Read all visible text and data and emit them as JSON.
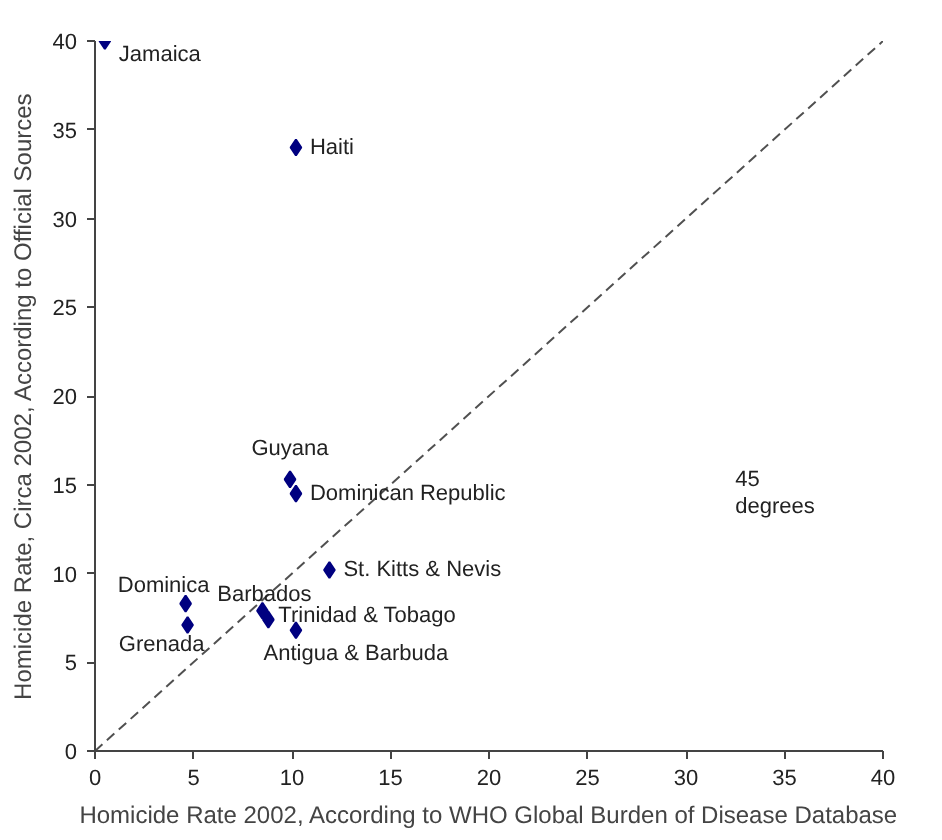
{
  "chart_data": {
    "type": "scatter",
    "xlabel": "Homicide Rate 2002, According to WHO Global Burden of Disease Database",
    "ylabel": "Homicide Rate, Circa 2002, According to Official Sources",
    "series": [
      {
        "color": "#000080",
        "marker": "diamond",
        "x": [
          0.5,
          10.2,
          9.9,
          10.2,
          11.9,
          4.6,
          4.7,
          8.5,
          8.8,
          10.2
        ],
        "values": [
          40,
          34,
          15.3,
          14.5,
          10.2,
          8.3,
          7.1,
          7.9,
          7.4,
          6.8
        ]
      },
      {
        "type": "line",
        "color": "#505050",
        "line_style": "dashed",
        "marker": "none",
        "x": [
          0,
          40
        ],
        "values": [
          0,
          40
        ]
      }
    ],
    "annotations": [
      {
        "text": "Jamaica",
        "x": 0.5,
        "y": 40
      },
      {
        "text": "Haiti",
        "x": 10.2,
        "y": 34
      },
      {
        "text": "Guyana",
        "x": 9.9,
        "y": 15.3
      },
      {
        "text": "Dominican Republic",
        "x": 10.2,
        "y": 14.5
      },
      {
        "text": "St. Kitts & Nevis",
        "x": 11.9,
        "y": 10.2
      },
      {
        "text": "Dominica",
        "x": 4.6,
        "y": 8.3
      },
      {
        "text": "Grenada",
        "x": 4.7,
        "y": 7.1
      },
      {
        "text": "Barbados",
        "x": 8.5,
        "y": 7.9
      },
      {
        "text": "Trinidad & Tobago",
        "x": 8.8,
        "y": 7.4
      },
      {
        "text": "Antigua & Barbuda",
        "x": 10.2,
        "y": 6.8
      },
      "45\ndegrees"
    ],
    "xlim": [
      0,
      40
    ],
    "ylim": [
      0,
      40
    ],
    "xticks": [
      0,
      5,
      10,
      15,
      20,
      25,
      30,
      35,
      40
    ],
    "yticks": [
      0,
      5,
      10,
      15,
      20,
      25,
      30,
      35,
      40
    ],
    "grid": false
  }
}
